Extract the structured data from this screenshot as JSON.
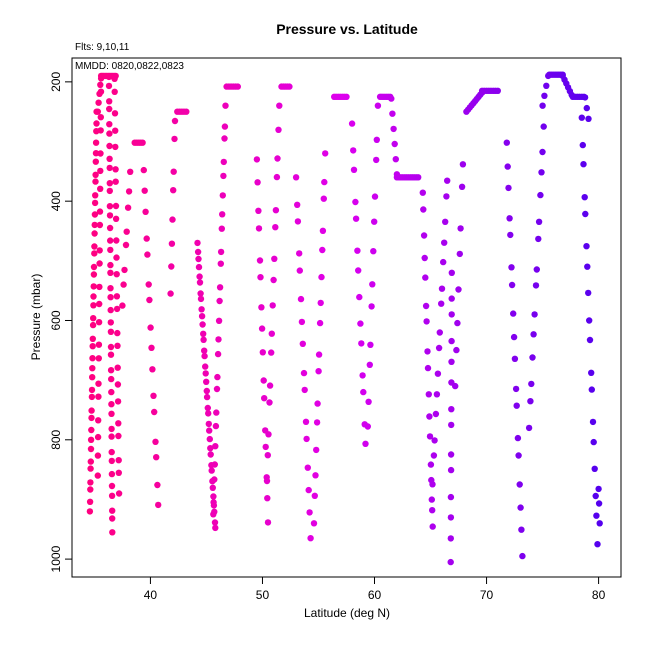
{
  "chart_data": {
    "type": "scatter",
    "title": "Pressure vs. Latitude",
    "annotations": [
      "Flts: 9,10,11",
      "MMDD: 0820,0822,0823"
    ],
    "xlabel": "Latitude (deg N)",
    "ylabel": "Pressure (mbar)",
    "xlim": [
      33.0,
      82.0
    ],
    "ylim": [
      1030,
      160
    ],
    "y_inverted": true,
    "x_ticks": [
      40,
      50,
      60,
      70,
      80
    ],
    "y_ticks": [
      200,
      400,
      600,
      800,
      1000
    ],
    "grid": false,
    "color_scale": {
      "start_lat": 34.5,
      "end_lat": 80.0,
      "start_color": "#ff0080",
      "mid_color": "#dd00ee",
      "end_color": "#5500ee"
    },
    "profiles": [
      {
        "lat_bottom": 34.6,
        "lat_top": 35.2,
        "p_bottom": 920,
        "p_top": 250,
        "n": 40
      },
      {
        "lat_bottom": 35.3,
        "lat_top": 35.6,
        "p_bottom": 860,
        "p_top": 190,
        "n": 22
      },
      {
        "lat_bottom": 36.6,
        "lat_top": 36.3,
        "p_bottom": 955,
        "p_top": 190,
        "n": 40
      },
      {
        "lat_bottom": 37.2,
        "lat_top": 36.8,
        "p_bottom": 890,
        "p_top": 190,
        "n": 24
      },
      {
        "lat_bottom": 37.5,
        "lat_top": 38.2,
        "p_bottom": 575,
        "p_top": 350,
        "n": 8
      },
      {
        "lat_bottom": 40.7,
        "lat_top": 39.4,
        "p_bottom": 910,
        "p_top": 345,
        "n": 16
      },
      {
        "lat_bottom": 41.8,
        "lat_top": 42.2,
        "p_bottom": 555,
        "p_top": 260,
        "n": 8
      },
      {
        "lat_bottom": 45.8,
        "lat_top": 44.2,
        "p_bottom": 950,
        "p_top": 470,
        "n": 36
      },
      {
        "lat_bottom": 45.6,
        "lat_top": 46.7,
        "p_bottom": 930,
        "p_top": 240,
        "n": 24
      },
      {
        "lat_bottom": 50.5,
        "lat_top": 49.5,
        "p_bottom": 940,
        "p_top": 330,
        "n": 16
      },
      {
        "lat_bottom": 50.4,
        "lat_top": 51.5,
        "p_bottom": 870,
        "p_top": 240,
        "n": 16
      },
      {
        "lat_bottom": 54.3,
        "lat_top": 53.0,
        "p_bottom": 965,
        "p_top": 360,
        "n": 16
      },
      {
        "lat_bottom": 54.6,
        "lat_top": 55.6,
        "p_bottom": 940,
        "p_top": 320,
        "n": 16
      },
      {
        "lat_bottom": 59.2,
        "lat_top": 58.0,
        "p_bottom": 810,
        "p_top": 270,
        "n": 14
      },
      {
        "lat_bottom": 59.4,
        "lat_top": 60.3,
        "p_bottom": 780,
        "p_top": 240,
        "n": 12
      },
      {
        "lat_bottom": 65.2,
        "lat_top": 64.3,
        "p_bottom": 950,
        "p_top": 380,
        "n": 16
      },
      {
        "lat_bottom": 65.1,
        "lat_top": 66.5,
        "p_bottom": 905,
        "p_top": 360,
        "n": 16
      },
      {
        "lat_bottom": 66.8,
        "lat_top": 66.9,
        "p_bottom": 1005,
        "p_top": 520,
        "n": 14
      },
      {
        "lat_bottom": 67.2,
        "lat_top": 67.9,
        "p_bottom": 710,
        "p_top": 330,
        "n": 8
      },
      {
        "lat_bottom": 73.2,
        "lat_top": 71.8,
        "p_bottom": 995,
        "p_top": 300,
        "n": 18
      },
      {
        "lat_bottom": 73.8,
        "lat_top": 75.1,
        "p_bottom": 780,
        "p_top": 275,
        "n": 14
      },
      {
        "lat_bottom": 79.9,
        "lat_top": 78.5,
        "p_bottom": 975,
        "p_top": 260,
        "n": 18
      },
      {
        "lat_bottom": 80.1,
        "lat_top": 80.0,
        "p_bottom": 940,
        "p_top": 880,
        "n": 3
      }
    ],
    "plateaus": [
      {
        "lat_start": 35.7,
        "lat_end": 36.9,
        "p": 190,
        "n": 10
      },
      {
        "lat_start": 38.6,
        "lat_end": 39.3,
        "p": 302,
        "n": 5
      },
      {
        "lat_start": 42.4,
        "lat_end": 43.2,
        "p": 250,
        "n": 5
      },
      {
        "lat_start": 46.8,
        "lat_end": 47.8,
        "p": 208,
        "n": 6
      },
      {
        "lat_start": 51.7,
        "lat_end": 52.4,
        "p": 208,
        "n": 5
      },
      {
        "lat_start": 56.4,
        "lat_end": 57.5,
        "p": 225,
        "n": 7
      },
      {
        "lat_start": 60.5,
        "lat_end": 61.4,
        "p": 225,
        "n": 6
      },
      {
        "lat_start": 62.0,
        "lat_end": 63.9,
        "p": 360,
        "n": 12
      },
      {
        "lat_start": 69.6,
        "lat_end": 71.0,
        "p": 215,
        "n": 8
      },
      {
        "lat_start": 75.6,
        "lat_end": 76.8,
        "p": 188,
        "n": 8
      },
      {
        "lat_start": 77.7,
        "lat_end": 78.7,
        "p": 225,
        "n": 6
      }
    ],
    "ramps": [
      {
        "lat_start": 35.3,
        "p_start": 250,
        "lat_end": 35.6,
        "p_end": 190,
        "n": 5
      },
      {
        "lat_start": 61.5,
        "p_start": 228,
        "lat_end": 62.0,
        "p_end": 355,
        "n": 6
      },
      {
        "lat_start": 68.2,
        "p_start": 250,
        "lat_end": 69.6,
        "p_end": 218,
        "n": 10
      },
      {
        "lat_start": 75.0,
        "p_start": 240,
        "lat_end": 75.5,
        "p_end": 190,
        "n": 4
      },
      {
        "lat_start": 76.8,
        "p_start": 190,
        "lat_end": 77.6,
        "p_end": 222,
        "n": 6
      },
      {
        "lat_start": 78.8,
        "p_start": 226,
        "lat_end": 79.1,
        "p_end": 262,
        "n": 3
      }
    ]
  }
}
